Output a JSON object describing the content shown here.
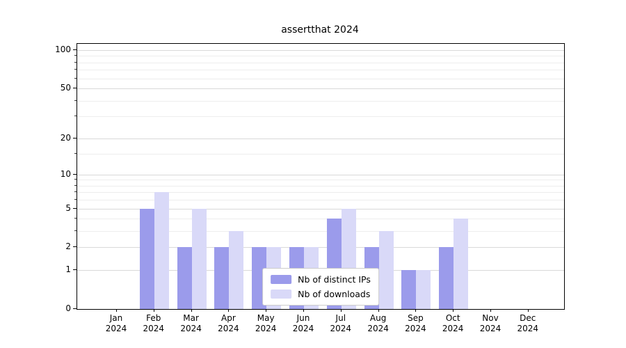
{
  "chart_data": {
    "type": "bar",
    "title": "assertthat 2024",
    "categories": [
      "Jan",
      "Feb",
      "Mar",
      "Apr",
      "May",
      "Jun",
      "Jul",
      "Aug",
      "Sep",
      "Oct",
      "Nov",
      "Dec"
    ],
    "category_year": "2024",
    "series": [
      {
        "name": "Nb of distinct IPs",
        "color": "#9b9beb",
        "values": [
          0,
          5,
          2,
          2,
          2,
          2,
          4,
          2,
          1,
          2,
          0,
          0
        ]
      },
      {
        "name": "Nb of downloads",
        "color": "#d9d9f8",
        "values": [
          0,
          7,
          5,
          3,
          2,
          2,
          5,
          3,
          1,
          4,
          0,
          0
        ]
      }
    ],
    "yscale": "log10(v+1)",
    "y_major_ticks": [
      0,
      1,
      2,
      5,
      10,
      20,
      50,
      100
    ],
    "y_minor_ticks": [
      3,
      4,
      6,
      7,
      8,
      9,
      15,
      30,
      40,
      60,
      70,
      80,
      90
    ],
    "ylim": [
      0,
      112
    ],
    "xlabel": "",
    "ylabel": "",
    "grid": true,
    "legend": {
      "position": "lower center"
    },
    "colors": {
      "axis": "#000000",
      "grid_major": "#d9d9d9",
      "grid_minor": "#ededed",
      "background": "#ffffff"
    }
  }
}
